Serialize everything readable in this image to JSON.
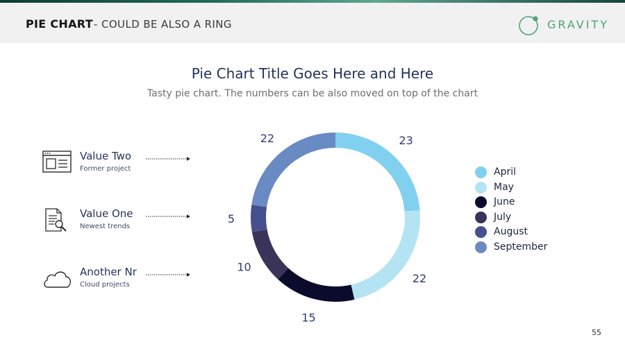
{
  "header": {
    "title": "PIE CHART",
    "subtitle": "- COULD BE ALSO A RING",
    "logo_text": "GRAVITY"
  },
  "features": [
    {
      "label": "Value Two",
      "description": "Former project",
      "icon": "browser-window-icon"
    },
    {
      "label": "Value One",
      "description": "Newest trends",
      "icon": "document-search-icon"
    },
    {
      "label": "Another Nr",
      "description": "Cloud projects",
      "icon": "cloud-icon"
    }
  ],
  "chart_data": {
    "type": "pie",
    "title": "Pie Chart Title Goes Here and Here",
    "subtitle": "Tasty pie chart. The numbers can be also moved on top of the chart",
    "style": "ring",
    "legend_position": "right",
    "categories": [
      "April",
      "May",
      "June",
      "July",
      "August",
      "September"
    ],
    "values": [
      23,
      22,
      15,
      10,
      5,
      22
    ],
    "colors": [
      "#82d0f0",
      "#b4e4f3",
      "#0b0c2c",
      "#3a3459",
      "#47508e",
      "#6a8ac3"
    ]
  },
  "page_number": "55"
}
